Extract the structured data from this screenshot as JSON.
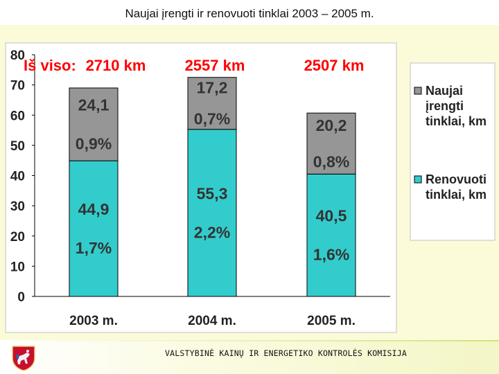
{
  "slide": {
    "title": "Naujai įrengti ir renovuoti tinklai 2003 – 2005 m.",
    "footer_text": "VALSTYBINĖ KAINŲ IR ENERGETIKO KONTROLĖS KOMISIJA"
  },
  "chart_data": {
    "type": "bar",
    "stacked": true,
    "categories": [
      "2003 m.",
      "2004 m.",
      "2005 m."
    ],
    "y_ticks": [
      "0",
      "10",
      "20",
      "30",
      "40",
      "50",
      "60",
      "70",
      "80"
    ],
    "ylim": [
      0,
      80
    ],
    "total_prefix": "Iš viso:",
    "totals": [
      "2710 km",
      "2557 km",
      "2507 km"
    ],
    "series": [
      {
        "name": "Renovuoti tinklai, km",
        "color": "#33cccc",
        "values": [
          44.9,
          55.3,
          40.5
        ],
        "value_labels": [
          "44,9",
          "55,3",
          "40,5"
        ],
        "percent_labels": [
          "1,7%",
          "2,2%",
          "1,6%"
        ]
      },
      {
        "name": "Naujai įrengti tinklai, km",
        "color": "#969696",
        "values": [
          24.1,
          17.2,
          20.2
        ],
        "value_labels": [
          "24,1",
          "17,2",
          "20,2"
        ],
        "percent_labels": [
          "0,9%",
          "0,7%",
          "0,8%"
        ]
      }
    ],
    "legend_position": "right",
    "grid": false
  }
}
